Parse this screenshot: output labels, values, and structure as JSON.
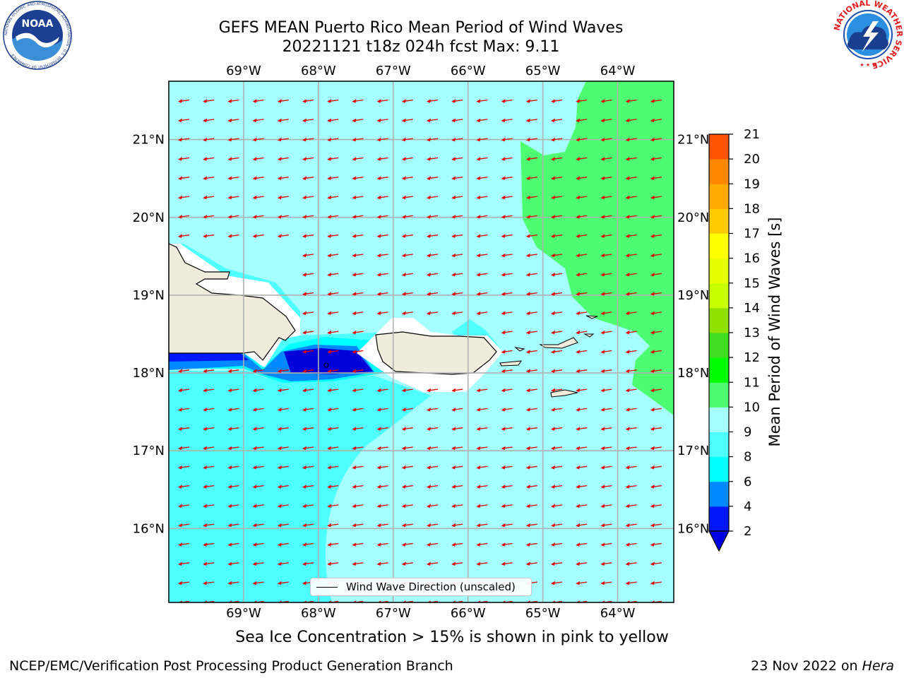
{
  "header": {
    "title_line_1": "GEFS MEAN Puerto Rico Mean Period of Wind Waves",
    "title_line_2": "20221121 t18z 024h fcst   Max: 9.11"
  },
  "logos": {
    "noaa": {
      "text": "NOAA",
      "ring_text": "NATIONAL OCEANIC AND ATMOSPHERIC ADMINISTRATION · U.S. DEPARTMENT OF COMMERCE ·"
    },
    "nws": {
      "ring_text": "NATIONAL WEATHER SERVICE"
    }
  },
  "map": {
    "lon_ticks": [
      -69,
      -68,
      -67,
      -66,
      -65,
      -64
    ],
    "lat_ticks": [
      16,
      17,
      18,
      19,
      20,
      21
    ],
    "lon_labels": [
      "69°W",
      "68°W",
      "67°W",
      "66°W",
      "65°W",
      "64°W"
    ],
    "lat_labels": [
      "16°N",
      "17°N",
      "18°N",
      "19°N",
      "20°N",
      "21°N"
    ],
    "extent": {
      "lon": [
        -70,
        -63.25
      ],
      "lat": [
        15.05,
        21.75
      ]
    },
    "land_color": "#efecdc",
    "arrow_color": "#e00000",
    "arrow_direction": "westward"
  },
  "legend": {
    "label": "Wind Wave Direction (unscaled)"
  },
  "colorbar": {
    "label": "Mean Period of Wind Waves [s]",
    "tick_labels": [
      "2",
      "4",
      "6",
      "8",
      "9",
      "10",
      "11",
      "12",
      "13",
      "14",
      "15",
      "16",
      "17",
      "18",
      "19",
      "20",
      "21"
    ],
    "colors": [
      "#0018f5",
      "#0088ff",
      "#00ffff",
      "#4dffff",
      "#a6ffff",
      "#4dff70",
      "#00ff00",
      "#40dd20",
      "#90e000",
      "#c8ff00",
      "#e6ff00",
      "#ffff00",
      "#ffcc00",
      "#ffaa00",
      "#ff8800",
      "#ff5500",
      "#ff2200",
      "#ff0000"
    ],
    "under_color": "#0000e0"
  },
  "footer": {
    "sea_ice_note": "Sea Ice Concentration > 15% is shown in pink to yellow",
    "left": "NCEP/EMC/Verification Post Processing Product Generation Branch",
    "date": "23 Nov 2022 on ",
    "host": "Hera"
  }
}
